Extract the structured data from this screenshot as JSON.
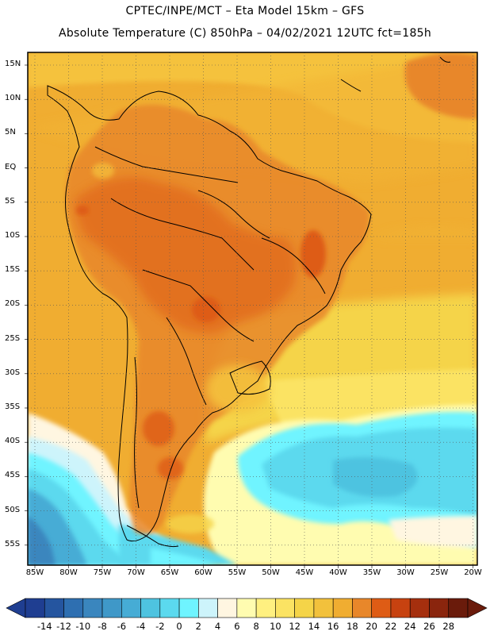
{
  "header": {
    "line1": "CPTEC/INPE/MCT –  Eta Model 15km – GFS",
    "line2": "Absolute Temperature (C) 850hPa – 04/02/2021 12UTC fct=185h"
  },
  "map": {
    "lat_labels": [
      "15N",
      "10N",
      "5N",
      "EQ",
      "5S",
      "10S",
      "15S",
      "20S",
      "25S",
      "30S",
      "35S",
      "40S",
      "45S",
      "50S",
      "55S"
    ],
    "lon_labels": [
      "85W",
      "80W",
      "75W",
      "70W",
      "65W",
      "60W",
      "55W",
      "50W",
      "45W",
      "40W",
      "35W",
      "30W",
      "25W",
      "20W"
    ],
    "region": "South America",
    "grid": "dotted"
  },
  "colorbar": {
    "labels": [
      "-14",
      "-12",
      "-10",
      "-8",
      "-6",
      "-4",
      "-2",
      "0",
      "2",
      "4",
      "6",
      "8",
      "10",
      "12",
      "14",
      "16",
      "18",
      "20",
      "22",
      "24",
      "26",
      "28"
    ],
    "colors": [
      "#1f3e91",
      "#25559f",
      "#2e6fb1",
      "#3a86be",
      "#3f98c8",
      "#46acd5",
      "#4ec3e0",
      "#5bd9ee",
      "#6ff4ff",
      "#cdf4fb",
      "#fff6e1",
      "#fffcb0",
      "#fff080",
      "#fbe363",
      "#f5d448",
      "#f2c13c",
      "#f0ad31",
      "#e8872a",
      "#de5c15",
      "#c74210",
      "#a52f0e",
      "#8a250d",
      "#6a1b0b"
    ]
  }
}
